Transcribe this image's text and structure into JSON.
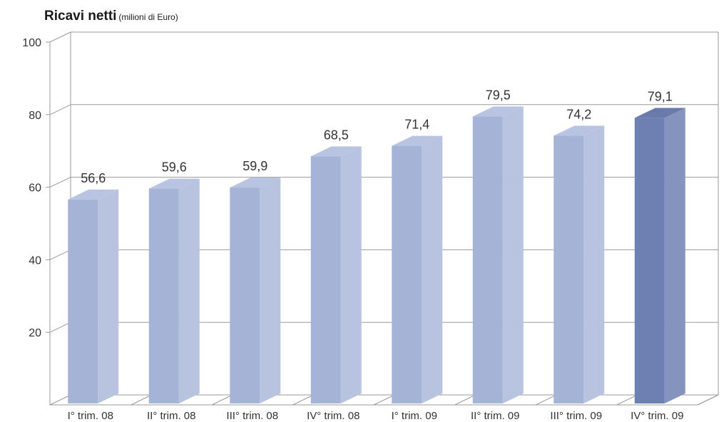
{
  "chart_data": {
    "type": "bar",
    "title": "Ricavi netti",
    "subtitle": "(milioni di Euro)",
    "categories": [
      "I° trim. 08",
      "II° trim. 08",
      "III° trim. 08",
      "IV° trim. 08",
      "I° trim. 09",
      "II° trim. 09",
      "III° trim. 09",
      "IV° trim. 09"
    ],
    "values": [
      56.6,
      59.6,
      59.9,
      68.5,
      71.4,
      79.5,
      74.2,
      79.1
    ],
    "value_labels": [
      "56,6",
      "59,6",
      "59,9",
      "68,5",
      "71,4",
      "79,5",
      "74,2",
      "79,1"
    ],
    "ylim": [
      0,
      100
    ],
    "yticks": [
      20,
      40,
      60,
      80,
      100
    ],
    "grid": true,
    "legend": "none",
    "three_d": true,
    "highlight_index": 7,
    "colors": {
      "bar_front": "#a5b3d6",
      "bar_side": "#b8c3e0",
      "bar_top": "#b9c4e2",
      "highlight_front": "#6e80b1",
      "highlight_side": "#8593bf",
      "highlight_top": "#6a7aab",
      "grid": "#9a9a9a"
    }
  }
}
